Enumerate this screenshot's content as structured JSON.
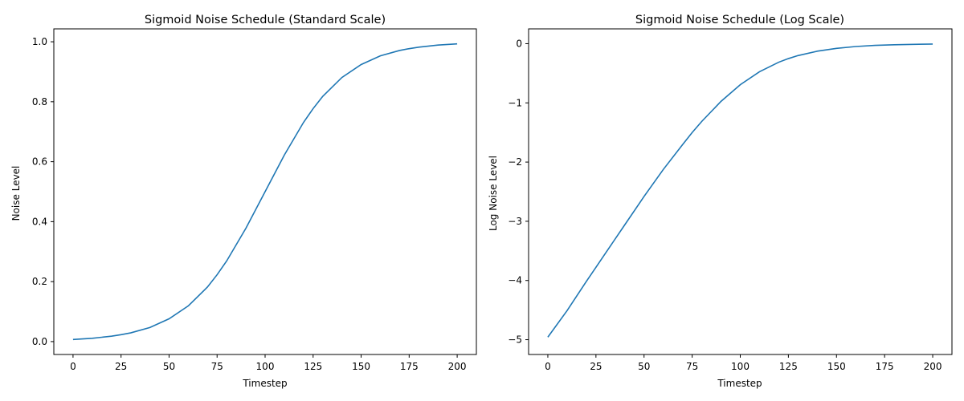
{
  "chart_data": [
    {
      "type": "line",
      "title": "Sigmoid Noise Schedule (Standard Scale)",
      "xlabel": "Timestep",
      "ylabel": "Noise Level",
      "xlim": [
        -10,
        210
      ],
      "ylim": [
        -0.043,
        1.043
      ],
      "xticks": [
        0,
        25,
        50,
        75,
        100,
        125,
        150,
        175,
        200
      ],
      "yticks": [
        0.0,
        0.2,
        0.4,
        0.6,
        0.8,
        1.0
      ],
      "ytick_labels": [
        "0.0",
        "0.2",
        "0.4",
        "0.6",
        "0.8",
        "1.0"
      ],
      "grid": false,
      "color": "#1f77b4",
      "series": [
        {
          "x": [
            0,
            10,
            20,
            25,
            30,
            40,
            50,
            60,
            70,
            75,
            80,
            90,
            100,
            110,
            120,
            125,
            130,
            140,
            150,
            160,
            170,
            175,
            180,
            190,
            200
          ],
          "values": [
            0.007,
            0.011,
            0.018,
            0.023,
            0.029,
            0.047,
            0.076,
            0.119,
            0.182,
            0.223,
            0.269,
            0.378,
            0.5,
            0.622,
            0.731,
            0.777,
            0.818,
            0.881,
            0.924,
            0.953,
            0.971,
            0.977,
            0.982,
            0.989,
            0.993
          ]
        }
      ]
    },
    {
      "type": "line",
      "title": "Sigmoid Noise Schedule (Log Scale)",
      "xlabel": "Timestep",
      "ylabel": "Log Noise Level",
      "xlim": [
        -10,
        210
      ],
      "ylim": [
        -5.25,
        0.25
      ],
      "xticks": [
        0,
        25,
        50,
        75,
        100,
        125,
        150,
        175,
        200
      ],
      "yticks": [
        0,
        -1,
        -2,
        -3,
        -4,
        -5
      ],
      "ytick_labels": [
        "0",
        "−1",
        "−2",
        "−3",
        "−4",
        "−5"
      ],
      "grid": false,
      "color": "#1f77b4",
      "series": [
        {
          "x": [
            0,
            10,
            20,
            25,
            30,
            40,
            50,
            60,
            70,
            75,
            80,
            90,
            100,
            110,
            120,
            125,
            130,
            140,
            150,
            160,
            170,
            175,
            180,
            190,
            200
          ],
          "values": [
            -4.957,
            -4.509,
            -4.017,
            -3.778,
            -3.537,
            -3.059,
            -2.581,
            -2.125,
            -1.706,
            -1.501,
            -1.313,
            -0.974,
            -0.693,
            -0.474,
            -0.313,
            -0.252,
            -0.201,
            -0.127,
            -0.079,
            -0.048,
            -0.029,
            -0.023,
            -0.018,
            -0.011,
            -0.007
          ]
        }
      ]
    }
  ]
}
